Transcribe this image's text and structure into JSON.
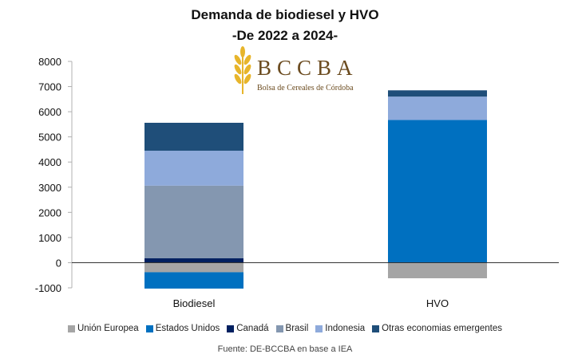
{
  "title": "Demanda de biodiesel y HVO",
  "subtitle": "-De 2022 a 2024-",
  "logo": {
    "name": "BCCBA",
    "subtitle": "Bolsa de Cereales de Córdoba",
    "color": "#6b4b1f",
    "accent": "#e7b52b"
  },
  "source": "Fuente: DE-BCCBA en base a IEA",
  "chart_data": {
    "type": "bar",
    "stacked": true,
    "categories": [
      "Biodiesel",
      "HVO"
    ],
    "ylim": [
      -1000,
      8000
    ],
    "yticks": [
      -1000,
      0,
      1000,
      2000,
      3000,
      4000,
      5000,
      6000,
      7000,
      8000
    ],
    "grid": false,
    "legend_position": "bottom",
    "series": [
      {
        "name": "Unión Europea",
        "color": "#a5a5a5",
        "values": [
          -380,
          -620
        ]
      },
      {
        "name": "Estados Unidos",
        "color": "#0070c0",
        "values": [
          -650,
          5670
        ]
      },
      {
        "name": "Canadá",
        "color": "#002060",
        "values": [
          180,
          0
        ]
      },
      {
        "name": "Brasil",
        "color": "#8497b0",
        "values": [
          2880,
          0
        ]
      },
      {
        "name": "Indonesia",
        "color": "#8eaadb",
        "values": [
          1390,
          930
        ]
      },
      {
        "name": "Otras economias emergentes",
        "color": "#1f4e79",
        "values": [
          1110,
          250
        ]
      }
    ]
  }
}
